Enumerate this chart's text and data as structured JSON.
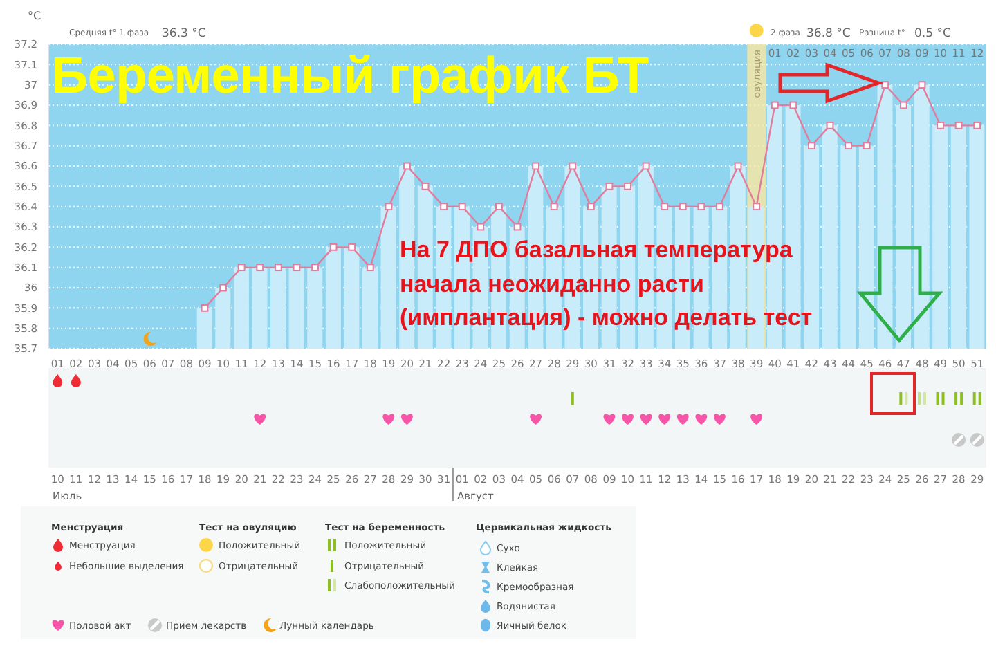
{
  "chart_data": [
    {
      "type": "line",
      "title": "Беременный график БТ",
      "ylabel": "°C",
      "categories": [
        "01",
        "02",
        "03",
        "04",
        "05",
        "06",
        "07",
        "08",
        "09",
        "10",
        "11",
        "12",
        "13",
        "14",
        "15",
        "16",
        "17",
        "18",
        "19",
        "20",
        "21",
        "22",
        "23",
        "24",
        "25",
        "26",
        "27",
        "28",
        "29",
        "30",
        "31",
        "32",
        "33",
        "34",
        "35",
        "36",
        "37",
        "38",
        "39",
        "40",
        "41",
        "42",
        "43",
        "44",
        "45",
        "46",
        "47",
        "48",
        "49",
        "50",
        "51"
      ],
      "series": [
        {
          "type": "bar",
          "color": "#c9ecfb",
          "values": [
            null,
            null,
            null,
            null,
            null,
            null,
            null,
            null,
            35.9,
            36,
            36.1,
            36.1,
            36.1,
            36.1,
            36.1,
            36.2,
            36.2,
            36.1,
            36.4,
            36.6,
            36.5,
            36.4,
            36.4,
            36.3,
            36.4,
            36.3,
            36.6,
            36.4,
            36.6,
            36.4,
            36.5,
            36.5,
            36.6,
            36.4,
            36.4,
            36.4,
            36.4,
            36.6,
            36.4,
            36.9,
            36.9,
            36.7,
            36.8,
            36.7,
            36.7,
            37,
            36.9,
            37,
            36.8,
            36.8,
            36.8
          ]
        },
        {
          "type": "line",
          "color": "#e27c9c",
          "values": [
            null,
            null,
            null,
            null,
            null,
            null,
            null,
            null,
            35.9,
            36,
            36.1,
            36.1,
            36.1,
            36.1,
            36.1,
            36.2,
            36.2,
            36.1,
            36.4,
            36.6,
            36.5,
            36.4,
            36.4,
            36.3,
            36.4,
            36.3,
            36.6,
            36.4,
            36.6,
            36.4,
            36.5,
            36.5,
            36.6,
            36.4,
            36.4,
            36.4,
            36.4,
            36.6,
            36.4,
            36.9,
            36.9,
            36.7,
            36.8,
            36.7,
            36.7,
            37,
            36.9,
            37,
            36.8,
            36.8,
            36.8
          ]
        }
      ],
      "ylim": [
        35.7,
        37.2
      ],
      "yticks": [
        35.7,
        35.8,
        35.9,
        36,
        36.1,
        36.2,
        36.3,
        36.4,
        36.5,
        36.6,
        36.7,
        36.8,
        36.9,
        37,
        37.1,
        37.2
      ],
      "grid": "y",
      "marker": "square",
      "bands": [
        {
          "axis": "x",
          "from": "39",
          "to": "39",
          "label": "овуляция",
          "color": "#fae7a0"
        }
      ],
      "annotations": [
        "Средняя t° 1 фаза",
        "36.3 °C",
        "2 фаза",
        "36.8 °C",
        "Разница t°",
        "0.5 °C",
        "На 7 ДПО базальная температура\nначала неожиданно расти\n(имплантация) - можно делать тест",
        "01",
        "02",
        "03",
        "04",
        "05",
        "06",
        "07",
        "08",
        "09",
        "10",
        "11",
        "12",
        "10",
        "11",
        "12",
        "13",
        "14",
        "15",
        "16",
        "17",
        "18",
        "19",
        "20",
        "21",
        "22",
        "23",
        "24",
        "25",
        "26",
        "27",
        "28",
        "29",
        "30",
        "31",
        "01",
        "02",
        "03",
        "04",
        "05",
        "06",
        "07",
        "08",
        "09",
        "10",
        "11",
        "12",
        "13",
        "14",
        "15",
        "16",
        "17",
        "18",
        "19",
        "20",
        "21",
        "22",
        "23",
        "24",
        "25",
        "26",
        "27",
        "28",
        "29",
        "Июль",
        "Август"
      ]
    },
    {
      "type": "other",
      "annotations": [
        "Менструация",
        "Менструация",
        "Небольшие выделения",
        "Тест на овуляцию",
        "Положительный",
        "Отрицательный",
        "Тест на беременность",
        "Положительный",
        "Отрицательный",
        "Слабоположительный",
        "Цервикальная жидкость",
        "Сухо",
        "Клейкая",
        "Кремообразная",
        "Водянистая",
        "Яичный белок",
        "Половой акт",
        "Прием лекарств",
        "Лунный календарь"
      ]
    }
  ]
}
